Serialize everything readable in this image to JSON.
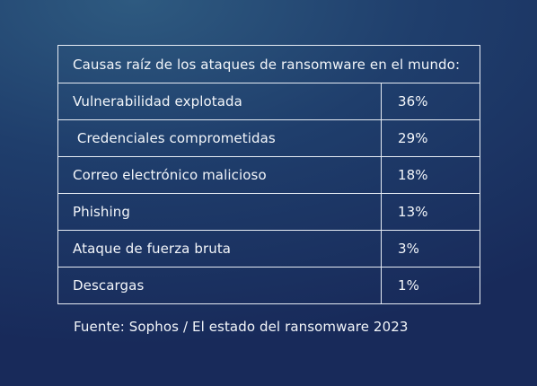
{
  "chart_data": {
    "type": "table",
    "title": "Causas raíz de los ataques de ransomware en el mundo:",
    "rows": [
      {
        "label": "Vulnerabilidad explotada",
        "value_text": "36%",
        "value": 36
      },
      {
        "label": " Credenciales comprometidas",
        "value_text": "29%",
        "value": 29
      },
      {
        "label": "Correo electrónico malicioso",
        "value_text": "18%",
        "value": 18
      },
      {
        "label": "Phishing",
        "value_text": "13%",
        "value": 13
      },
      {
        "label": "Ataque de fuerza bruta",
        "value_text": "3%",
        "value": 3
      },
      {
        "label": "Descargas",
        "value_text": "1%",
        "value": 1
      }
    ],
    "source": "Fuente: Sophos / El estado del ransomware 2023"
  },
  "colors": {
    "background_top": "#2e5a80",
    "background_bottom": "#182a5a",
    "border": "#e6ecf4",
    "text": "#f3f6fa"
  }
}
